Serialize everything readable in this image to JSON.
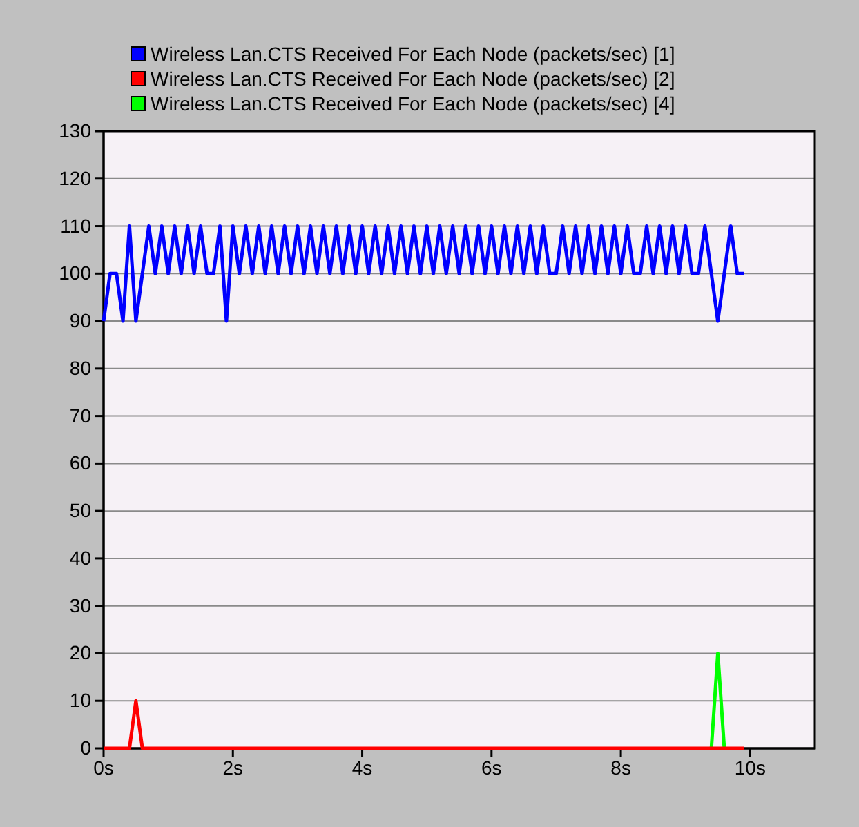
{
  "chart_data": {
    "type": "line",
    "legend": "top",
    "grid": "y",
    "marker": "none",
    "line_style": "solid",
    "xlim": [
      0,
      11
    ],
    "ylim": [
      0,
      130
    ],
    "xticks": [
      {
        "value": 0,
        "label": "0s"
      },
      {
        "value": 2,
        "label": "2s"
      },
      {
        "value": 4,
        "label": "4s"
      },
      {
        "value": 6,
        "label": "6s"
      },
      {
        "value": 8,
        "label": "8s"
      },
      {
        "value": 10,
        "label": "10s"
      }
    ],
    "yticks": [
      0,
      10,
      20,
      30,
      40,
      50,
      60,
      70,
      80,
      90,
      100,
      110,
      120,
      130
    ],
    "series": [
      {
        "name": "Wireless Lan.CTS Received For Each Node (packets/sec) [1]",
        "color": "#0000ff",
        "x": [
          0,
          0.1,
          0.2,
          0.3,
          0.4,
          0.5,
          0.6,
          0.7,
          0.8,
          0.9,
          1,
          1.1,
          1.2,
          1.3,
          1.4,
          1.5,
          1.6,
          1.7,
          1.8,
          1.9,
          2,
          2.1,
          2.2,
          2.3,
          2.4,
          2.5,
          2.6,
          2.7,
          2.8,
          2.9,
          3,
          3.1,
          3.2,
          3.3,
          3.4,
          3.5,
          3.6,
          3.7,
          3.8,
          3.9,
          4,
          4.1,
          4.2,
          4.3,
          4.4,
          4.5,
          4.6,
          4.7,
          4.8,
          4.9,
          5,
          5.1,
          5.2,
          5.3,
          5.4,
          5.5,
          5.6,
          5.7,
          5.8,
          5.9,
          6,
          6.1,
          6.2,
          6.3,
          6.4,
          6.5,
          6.6,
          6.7,
          6.8,
          6.9,
          7,
          7.1,
          7.2,
          7.3,
          7.4,
          7.5,
          7.6,
          7.7,
          7.8,
          7.9,
          8,
          8.1,
          8.2,
          8.3,
          8.4,
          8.5,
          8.6,
          8.7,
          8.8,
          8.9,
          9,
          9.1,
          9.2,
          9.3,
          9.4,
          9.5,
          9.6,
          9.7,
          9.8,
          9.9
        ],
        "values": [
          90,
          100,
          100,
          90,
          110,
          90,
          100,
          110,
          100,
          110,
          100,
          110,
          100,
          110,
          100,
          110,
          100,
          100,
          110,
          90,
          110,
          100,
          110,
          100,
          110,
          100,
          110,
          100,
          110,
          100,
          110,
          100,
          110,
          100,
          110,
          100,
          110,
          100,
          110,
          100,
          110,
          100,
          110,
          100,
          110,
          100,
          110,
          100,
          110,
          100,
          110,
          100,
          110,
          100,
          110,
          100,
          110,
          100,
          110,
          100,
          110,
          100,
          110,
          100,
          110,
          100,
          110,
          100,
          110,
          100,
          100,
          110,
          100,
          110,
          100,
          110,
          100,
          110,
          100,
          110,
          100,
          110,
          100,
          100,
          110,
          100,
          110,
          100,
          110,
          100,
          110,
          100,
          100,
          110,
          100,
          90,
          100,
          110,
          100,
          100
        ]
      },
      {
        "name": "Wireless Lan.CTS Received For Each Node (packets/sec) [2]",
        "color": "#ff0000",
        "x": [
          0,
          0.4,
          0.5,
          0.6,
          9.9
        ],
        "values": [
          0,
          0,
          10,
          0,
          0
        ]
      },
      {
        "name": "Wireless Lan.CTS Received For Each Node (packets/sec) [4]",
        "color": "#00ff00",
        "x": [
          9.4,
          9.5,
          9.6
        ],
        "values": [
          0,
          20,
          0
        ]
      }
    ]
  }
}
